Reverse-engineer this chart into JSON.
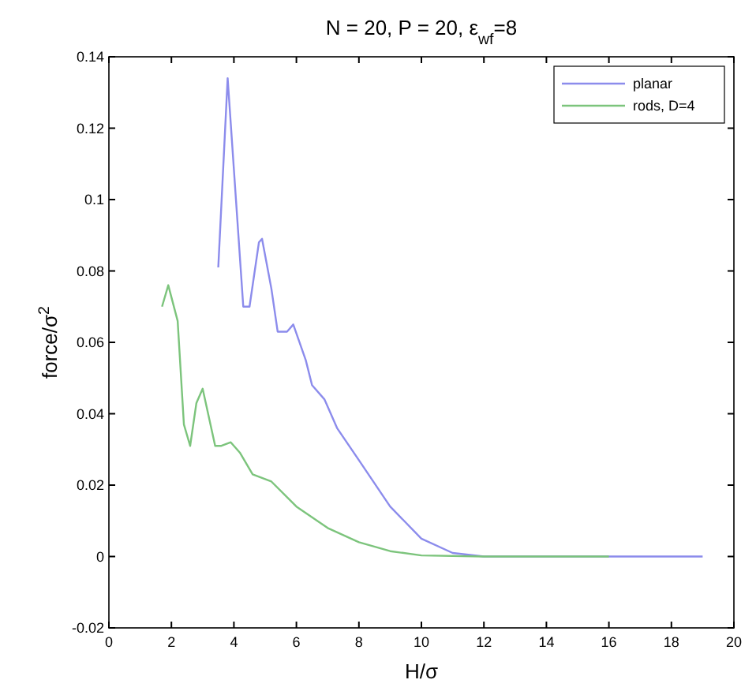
{
  "chart_data": {
    "type": "line",
    "title": "N = 20, P = 20, ε$_{wf}$=8",
    "xlabel": "H/σ",
    "ylabel": "force/σ$^{2}$",
    "xlim": [
      0,
      20
    ],
    "xticks": [
      0,
      2,
      4,
      6,
      8,
      10,
      12,
      14,
      16,
      18,
      20
    ],
    "ylim": [
      -0.02,
      0.14
    ],
    "yticks": [
      -0.02,
      0,
      0.02,
      0.04,
      0.06,
      0.08,
      0.1,
      0.12,
      0.14
    ],
    "grid": false,
    "legend": "top right",
    "series": [
      {
        "name": "planar",
        "color": "#8c8cec",
        "x": [
          3.5,
          3.8,
          4.3,
          4.5,
          4.8,
          4.9,
          5.2,
          5.4,
          5.7,
          5.9,
          6.3,
          6.5,
          6.9,
          7.3,
          8,
          9,
          10,
          11,
          12,
          19
        ],
        "values": [
          0.081,
          0.134,
          0.07,
          0.07,
          0.088,
          0.089,
          0.075,
          0.063,
          0.063,
          0.065,
          0.055,
          0.048,
          0.044,
          0.036,
          0.027,
          0.014,
          0.005,
          0.001,
          0,
          0
        ]
      },
      {
        "name": "rods, D=4",
        "color": "#7cc47c",
        "x": [
          1.7,
          1.9,
          2.2,
          2.4,
          2.6,
          2.8,
          3.0,
          3.4,
          3.6,
          3.9,
          4.2,
          4.6,
          5.2,
          6,
          7,
          8,
          9,
          10,
          12,
          16
        ],
        "values": [
          0.07,
          0.076,
          0.066,
          0.037,
          0.031,
          0.043,
          0.047,
          0.031,
          0.031,
          0.032,
          0.029,
          0.023,
          0.021,
          0.014,
          0.008,
          0.004,
          0.0015,
          0.0003,
          0,
          0
        ]
      }
    ]
  }
}
